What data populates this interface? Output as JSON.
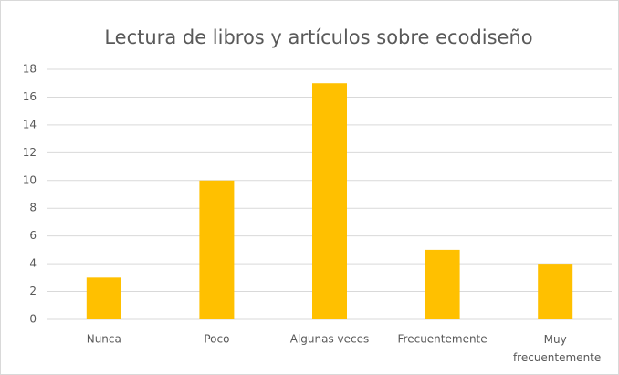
{
  "chart_data": {
    "type": "bar",
    "title": "Lectura de libros y artículos sobre ecodiseño",
    "categories": [
      "Nunca",
      "Poco",
      "Algunas veces",
      "Frecuentemente",
      "Muy frecuentemente"
    ],
    "values": [
      3,
      10,
      17,
      5,
      4
    ],
    "color": "#FFC000",
    "ylim": [
      0,
      18
    ],
    "yticks": [
      0,
      2,
      4,
      6,
      8,
      10,
      12,
      14,
      16,
      18
    ],
    "grid": true
  }
}
